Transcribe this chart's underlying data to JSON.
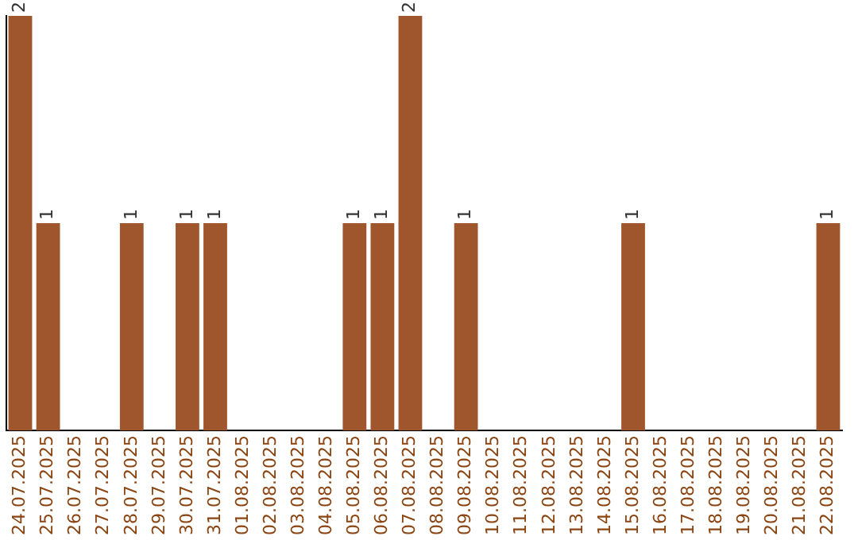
{
  "chart_data": {
    "type": "bar",
    "ylim": [
      0,
      2
    ],
    "tick_labels": "x",
    "categories": [
      "24.07.2025",
      "25.07.2025",
      "26.07.2025",
      "27.07.2025",
      "28.07.2025",
      "29.07.2025",
      "30.07.2025",
      "31.07.2025",
      "01.08.2025",
      "02.08.2025",
      "03.08.2025",
      "04.08.2025",
      "05.08.2025",
      "06.08.2025",
      "07.08.2025",
      "08.08.2025",
      "09.08.2025",
      "10.08.2025",
      "11.08.2025",
      "12.08.2025",
      "13.08.2025",
      "14.08.2025",
      "15.08.2025",
      "16.08.2025",
      "17.08.2025",
      "18.08.2025",
      "19.08.2025",
      "20.08.2025",
      "21.08.2025",
      "22.08.2025"
    ],
    "values": [
      2,
      1,
      0,
      0,
      1,
      0,
      1,
      1,
      0,
      0,
      0,
      0,
      1,
      1,
      2,
      0,
      1,
      0,
      0,
      0,
      0,
      0,
      1,
      0,
      0,
      0,
      0,
      0,
      0,
      1
    ],
    "value_labels": [
      "2",
      "1",
      null,
      null,
      "1",
      null,
      "1",
      "1",
      null,
      null,
      null,
      null,
      "1",
      "1",
      "2",
      null,
      "1",
      null,
      null,
      null,
      null,
      null,
      "1",
      null,
      null,
      null,
      null,
      null,
      null,
      "1"
    ],
    "color": "#a0562c",
    "grid": false,
    "legend": false
  }
}
